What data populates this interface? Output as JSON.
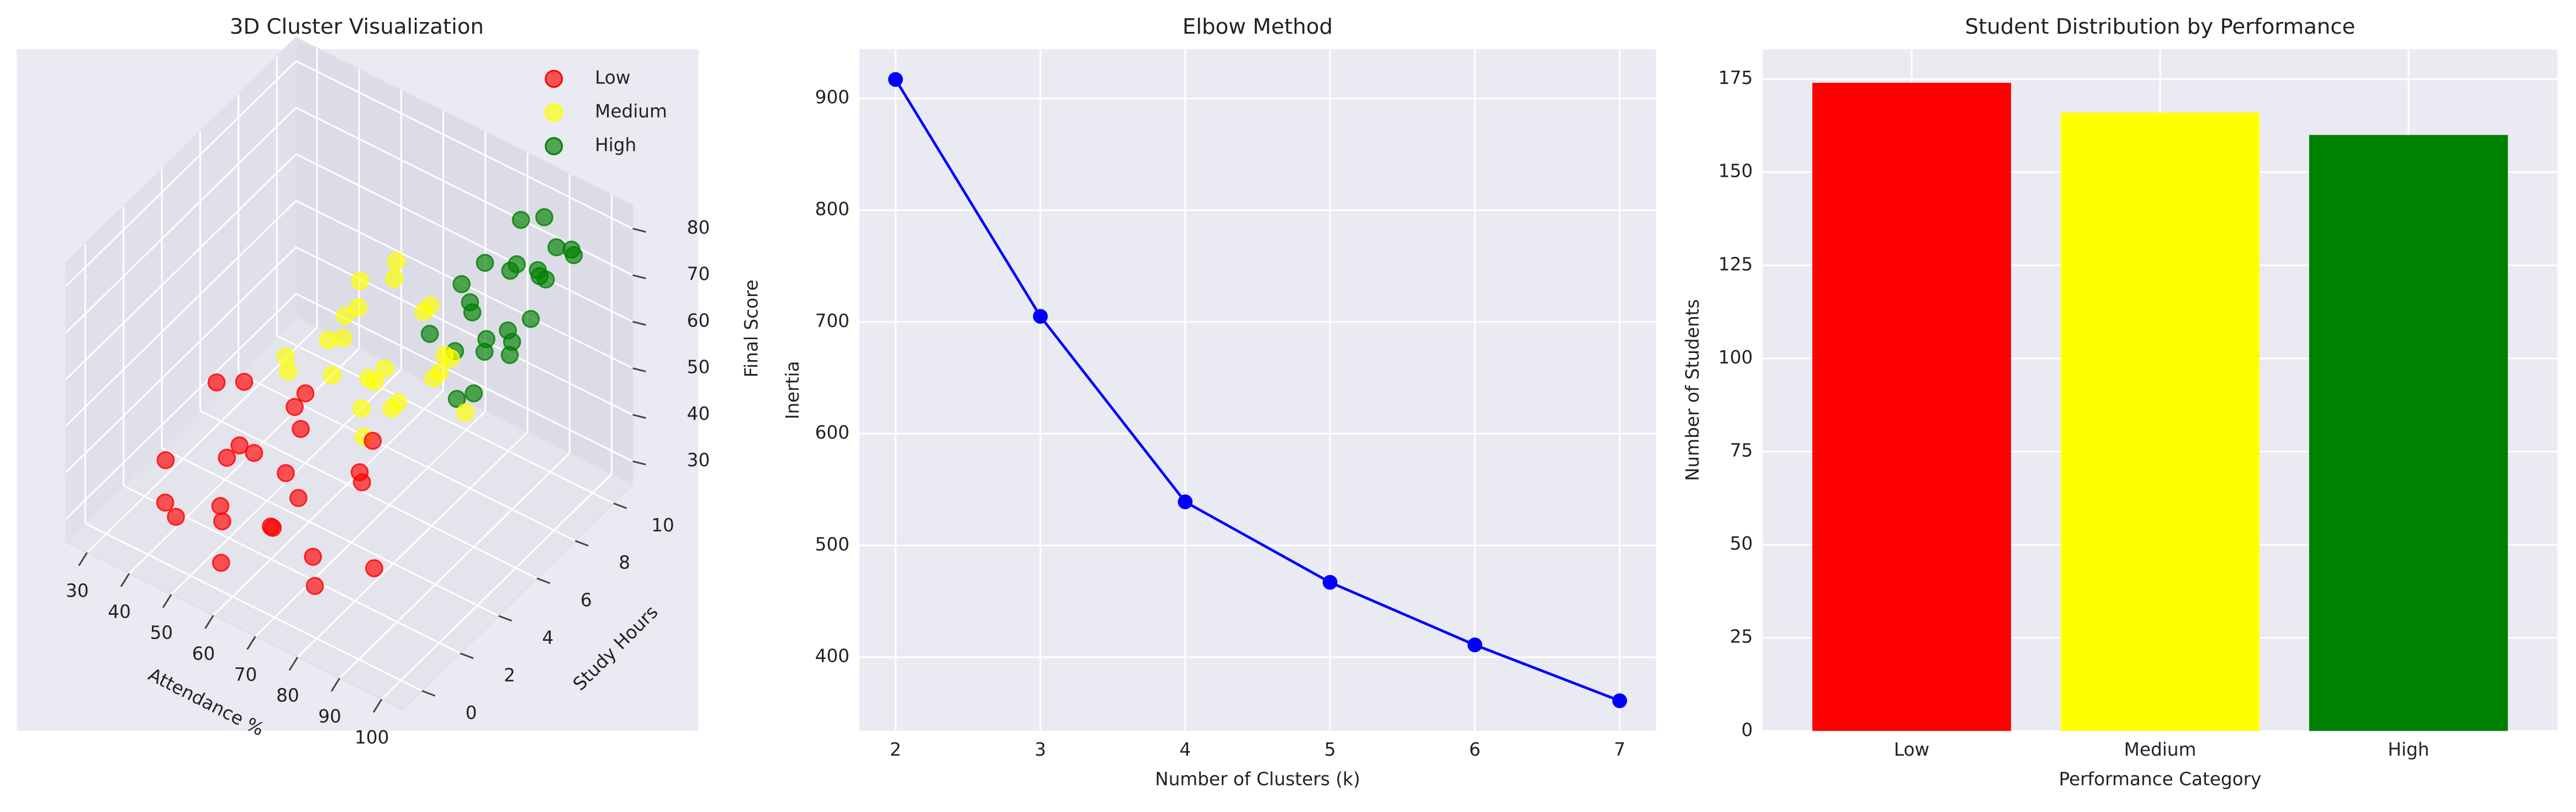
{
  "chart_data": [
    {
      "type": "scatter3d",
      "title": "3D Cluster Visualization",
      "xlabel": "Attendance %",
      "ylabel": "Study Hours",
      "zlabel": "Final Score",
      "xlim": [
        25,
        105
      ],
      "ylim": [
        -1,
        11
      ],
      "zlim": [
        25,
        85
      ],
      "xticks": [
        30,
        40,
        50,
        60,
        70,
        80,
        90,
        100
      ],
      "yticks": [
        0,
        2,
        4,
        6,
        8,
        10
      ],
      "zticks": [
        30,
        40,
        50,
        60,
        70,
        80
      ],
      "legend": "upper right",
      "series": [
        {
          "name": "Low",
          "color": "#ff0000",
          "x": [
            35,
            42,
            48,
            55,
            38,
            60,
            65,
            52,
            45,
            70,
            58,
            50,
            62,
            68,
            75,
            44,
            56,
            72,
            80,
            40,
            53,
            66,
            48,
            59
          ],
          "y": [
            2,
            1,
            3,
            0.5,
            4,
            2,
            1,
            5,
            3,
            2,
            4,
            6,
            3,
            5,
            1,
            0,
            2,
            4,
            3,
            5,
            1,
            6,
            2,
            3
          ],
          "z": [
            35,
            30,
            40,
            28,
            45,
            32,
            38,
            42,
            36,
            30,
            44,
            40,
            35,
            33,
            30,
            38,
            46,
            41,
            28,
            42,
            34,
            37,
            31,
            39
          ]
        },
        {
          "name": "Medium",
          "color": "#ffff00",
          "x": [
            55,
            60,
            65,
            70,
            58,
            75,
            62,
            68,
            72,
            80,
            85,
            66,
            78,
            63,
            74,
            82,
            59,
            71,
            67,
            77,
            88,
            64,
            73,
            69
          ],
          "y": [
            4,
            5,
            6,
            3,
            7,
            5,
            8,
            4,
            6,
            7,
            5,
            9,
            4,
            6,
            8,
            6,
            3,
            5,
            7,
            3,
            6,
            5,
            4,
            8
          ],
          "z": [
            55,
            60,
            50,
            65,
            58,
            52,
            62,
            68,
            48,
            57,
            63,
            54,
            66,
            70,
            51,
            59,
            64,
            56,
            72,
            61,
            53,
            67,
            49,
            58
          ]
        },
        {
          "name": "High",
          "color": "#008000",
          "x": [
            75,
            80,
            85,
            90,
            95,
            78,
            88,
            92,
            82,
            98,
            86,
            94,
            79,
            84,
            90,
            96,
            87,
            81,
            93,
            89,
            76,
            99,
            83,
            91
          ],
          "y": [
            7,
            8,
            9,
            6,
            10,
            8,
            7,
            9,
            10,
            8,
            6,
            7,
            9,
            11,
            8,
            9,
            10,
            7,
            6,
            8,
            9,
            7,
            10,
            11
          ],
          "z": [
            60,
            65,
            70,
            58,
            75,
            68,
            62,
            72,
            66,
            78,
            55,
            64,
            69,
            73,
            61,
            80,
            67,
            59,
            71,
            63,
            57,
            74,
            76,
            68
          ]
        }
      ]
    },
    {
      "type": "line",
      "title": "Elbow Method",
      "xlabel": "Number of Clusters (k)",
      "ylabel": "Inertia",
      "x": [
        2,
        3,
        4,
        5,
        6,
        7
      ],
      "values": [
        917,
        705,
        539,
        467,
        411,
        361
      ],
      "color": "#0000ff",
      "xlim": [
        1.75,
        7.25
      ],
      "ylim": [
        334,
        944
      ],
      "xticks": [
        2,
        3,
        4,
        5,
        6,
        7
      ],
      "yticks": [
        400,
        500,
        600,
        700,
        800,
        900
      ],
      "grid": true
    },
    {
      "type": "bar",
      "title": "Student Distribution by Performance",
      "xlabel": "Performance Category",
      "ylabel": "Number of Students",
      "categories": [
        "Low",
        "Medium",
        "High"
      ],
      "values": [
        174,
        166,
        160
      ],
      "colors": [
        "#ff0000",
        "#ffff00",
        "#008000"
      ],
      "ylim": [
        0,
        183
      ],
      "yticks": [
        0,
        25,
        50,
        75,
        100,
        125,
        150,
        175
      ],
      "grid": true
    }
  ]
}
